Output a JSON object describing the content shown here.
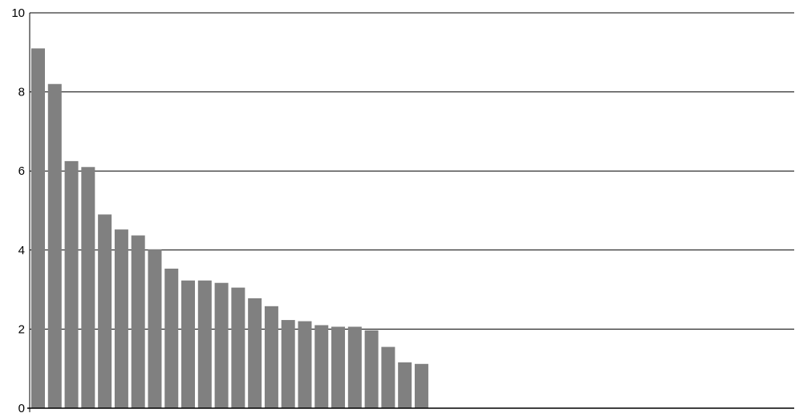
{
  "chart_data": {
    "type": "bar",
    "values": [
      9.1,
      8.2,
      6.25,
      6.1,
      4.9,
      4.52,
      4.37,
      4.02,
      3.53,
      3.23,
      3.23,
      3.17,
      3.05,
      2.78,
      2.58,
      2.23,
      2.2,
      2.1,
      2.06,
      2.06,
      1.97,
      1.55,
      1.16,
      1.12
    ],
    "ylim": [
      0,
      10
    ],
    "yticks": [
      "0",
      "2",
      "4",
      "6",
      "8",
      "10"
    ],
    "grid": true,
    "colors": {
      "bar": "#808080",
      "grid": "#000000",
      "axis": "#000000"
    }
  }
}
